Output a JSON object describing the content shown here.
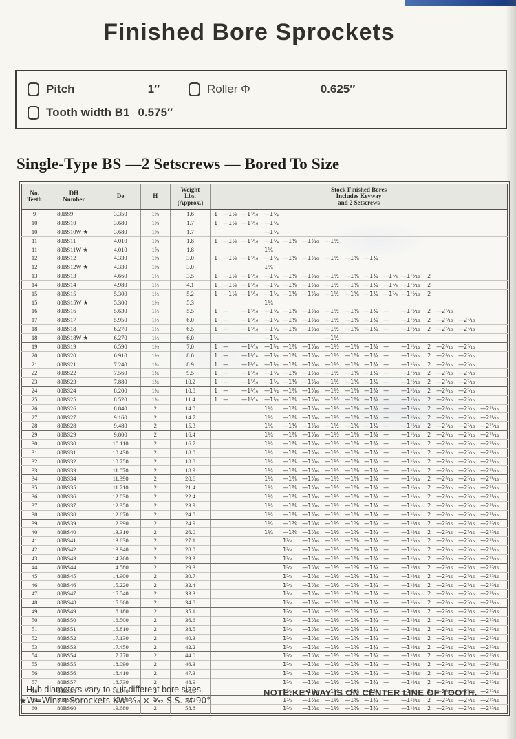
{
  "page": {
    "title": "Finished Bore Sprockets",
    "section_heading": "Single-Type BS —2 Setscrews — Bored To Size",
    "accent_color": "#2a56a4"
  },
  "specs": {
    "pitch_label": "Pitch",
    "pitch_value": "1″",
    "roller_label": "Roller Φ",
    "roller_value": "0.625″",
    "tooth_label": "Tooth width B1",
    "tooth_value": "0.575″"
  },
  "table": {
    "col_teeth": "No.\nTeeth",
    "col_dh": "DH\nNumber",
    "col_de": "De",
    "col_h": "H",
    "col_weight": "Weight\nLbs.\n(Approx.)",
    "col_bores": "Stock Finished Bores\nIncludes Keyway\nand 2 Setscrews",
    "bore_patterns": {
      "A": [
        "1",
        "—1⅛",
        "—1³⁄₁₆",
        "—1¼",
        "",
        "",
        "",
        "",
        "",
        "",
        "",
        "",
        "",
        "",
        ""
      ],
      "A4": [
        "",
        "",
        "",
        "—1¼",
        "",
        "",
        "",
        "",
        "",
        "",
        "",
        "",
        "",
        "",
        ""
      ],
      "B": [
        "1",
        "—1⅛",
        "—1³⁄₁₆",
        "—1¼",
        "—1⅜",
        "—1⁷⁄₁₆",
        "—1½",
        "",
        "",
        "",
        "",
        "",
        "",
        "",
        ""
      ],
      "W4": [
        "",
        "",
        "",
        "1¼",
        "",
        "",
        "",
        "",
        "",
        "",
        "",
        "",
        "",
        "",
        ""
      ],
      "C": [
        "1",
        "—1⅛",
        "—1³⁄₁₆",
        "—1¼",
        "—1⅜",
        "—1⁷⁄₁₆",
        "—1½",
        "—1⅝",
        "—1¾",
        "",
        "",
        "",
        "",
        "",
        ""
      ],
      "D": [
        "1",
        "—1⅛",
        "—1³⁄₁₆",
        "—1¼",
        "—1⅜",
        "—1⁷⁄₁₆",
        "—1½",
        "—1⅝",
        "—1¾",
        "—1⅞",
        "—1¹⁵⁄₁₆",
        "2",
        "",
        "",
        ""
      ],
      "E": [
        "1",
        "—",
        "—1³⁄₁₆",
        "—1¼",
        "—1⅜",
        "—1⁷⁄₁₆",
        "—1½",
        "—1⅝",
        "—1¾",
        "—",
        "—1¹⁵⁄₁₆",
        "2",
        "—2³⁄₁₆",
        "",
        ""
      ],
      "F": [
        "1",
        "—",
        "—1³⁄₁₆",
        "—1¼",
        "—1⅜",
        "—1⁷⁄₁₆",
        "—1½",
        "—1⅝",
        "—1¾",
        "—",
        "—1¹⁵⁄₁₆",
        "2",
        "—2³⁄₁₆",
        "—2⁷⁄₁₆",
        ""
      ],
      "G": [
        "",
        "",
        "",
        "—1¼",
        "",
        "",
        "—1½",
        "",
        "",
        "",
        "",
        "",
        "",
        "",
        ""
      ],
      "H14": [
        "",
        "",
        "",
        "1¼",
        "—1⅜",
        "—1⁷⁄₁₆",
        "—1½",
        "—1⅝",
        "—1¾",
        "—",
        "—1¹⁵⁄₁₆",
        "2",
        "—2³⁄₁₆",
        "—2⁷⁄₁₆",
        "—2¹⁵⁄₁₆"
      ],
      "I38": [
        "",
        "",
        "",
        "",
        "1⅜",
        "—1⁷⁄₁₆",
        "—1½",
        "—1⅝",
        "—1¾",
        "—",
        "—1¹⁵⁄₁₆",
        "2",
        "—2³⁄₁₆",
        "—2⁷⁄₁₆",
        "—2¹⁵⁄₁₆"
      ]
    },
    "rows": [
      {
        "teeth": "9",
        "dh": "80BS9",
        "de": "3.350",
        "h": "1⅝",
        "wt": "1.6",
        "bores": "A"
      },
      {
        "teeth": "10",
        "dh": "80BS10",
        "de": "3.680",
        "h": "1⅝",
        "wt": "1.7",
        "bores": "A"
      },
      {
        "teeth": "10",
        "dh": "80BS10W ★",
        "de": "3.680",
        "h": "1⅝",
        "wt": "1.7",
        "bores": "A4"
      },
      {
        "teeth": "11",
        "dh": "80BS11",
        "de": "4.010",
        "h": "1⅝",
        "wt": "1.8",
        "bores": "B"
      },
      {
        "teeth": "11",
        "dh": "80BS11W ★",
        "de": "4.010",
        "h": "1⅝",
        "wt": "1.8",
        "bores": "W4",
        "g": 1
      },
      {
        "teeth": "12",
        "dh": "80BS12",
        "de": "4.330",
        "h": "1⅝",
        "wt": "3.0",
        "bores": "C"
      },
      {
        "teeth": "12",
        "dh": "80BS12W ★",
        "de": "4.330",
        "h": "1⅝",
        "wt": "3.0",
        "bores": "W4"
      },
      {
        "teeth": "13",
        "dh": "80BS13",
        "de": "4.660",
        "h": "1½",
        "wt": "3.5",
        "bores": "D"
      },
      {
        "teeth": "14",
        "dh": "80BS14",
        "de": "4.980",
        "h": "1½",
        "wt": "4.1",
        "bores": "D"
      },
      {
        "teeth": "15",
        "dh": "80BS15",
        "de": "5.300",
        "h": "1½",
        "wt": "5.2",
        "bores": "D",
        "g": 1
      },
      {
        "teeth": "15",
        "dh": "80BS15W ★",
        "de": "5.300",
        "h": "1½",
        "wt": "5.3",
        "bores": "W4"
      },
      {
        "teeth": "16",
        "dh": "80BS16",
        "de": "5.630",
        "h": "1½",
        "wt": "5.5",
        "bores": "E"
      },
      {
        "teeth": "17",
        "dh": "80BS17",
        "de": "5.950",
        "h": "1½",
        "wt": "6.0",
        "bores": "F"
      },
      {
        "teeth": "18",
        "dh": "80BS18",
        "de": "6.270",
        "h": "1½",
        "wt": "6.5",
        "bores": "F"
      },
      {
        "teeth": "18",
        "dh": "80BS18W ★",
        "de": "6.270",
        "h": "1½",
        "wt": "6.0",
        "bores": "G",
        "g": 1
      },
      {
        "teeth": "19",
        "dh": "80BS19",
        "de": "6.590",
        "h": "1½",
        "wt": "7.0",
        "bores": "F"
      },
      {
        "teeth": "20",
        "dh": "80BS20",
        "de": "6.910",
        "h": "1½",
        "wt": "8.0",
        "bores": "F"
      },
      {
        "teeth": "21",
        "dh": "80BS21",
        "de": "7.240",
        "h": "1¾",
        "wt": "8.9",
        "bores": "F"
      },
      {
        "teeth": "22",
        "dh": "80BS22",
        "de": "7.560",
        "h": "1¾",
        "wt": "9.5",
        "bores": "F"
      },
      {
        "teeth": "23",
        "dh": "80BS23",
        "de": "7.880",
        "h": "1¾",
        "wt": "10.2",
        "bores": "F",
        "g": 1
      },
      {
        "teeth": "24",
        "dh": "80BS24",
        "de": "8.200",
        "h": "1¾",
        "wt": "10.8",
        "bores": "F"
      },
      {
        "teeth": "25",
        "dh": "80BS25",
        "de": "8.520",
        "h": "1¾",
        "wt": "11.4",
        "bores": "F"
      },
      {
        "teeth": "26",
        "dh": "80BS26",
        "de": "8.840",
        "h": "2",
        "wt": "14.0",
        "bores": "H14"
      },
      {
        "teeth": "27",
        "dh": "80BS27",
        "de": "9.160",
        "h": "2",
        "wt": "14.7",
        "bores": "H14"
      },
      {
        "teeth": "28",
        "dh": "80BS28",
        "de": "9.480",
        "h": "2",
        "wt": "15.3",
        "bores": "H14",
        "g": 1
      },
      {
        "teeth": "29",
        "dh": "80BS29",
        "de": "9.800",
        "h": "2",
        "wt": "16.4",
        "bores": "H14"
      },
      {
        "teeth": "30",
        "dh": "80BS30",
        "de": "10.110",
        "h": "2",
        "wt": "16.7",
        "bores": "H14"
      },
      {
        "teeth": "31",
        "dh": "80BS31",
        "de": "10.430",
        "h": "2",
        "wt": "18.0",
        "bores": "H14"
      },
      {
        "teeth": "32",
        "dh": "80BS32",
        "de": "10.750",
        "h": "2",
        "wt": "18.8",
        "bores": "H14"
      },
      {
        "teeth": "33",
        "dh": "80BS33",
        "de": "11.070",
        "h": "2",
        "wt": "18.9",
        "bores": "H14",
        "g": 1
      },
      {
        "teeth": "34",
        "dh": "80BS34",
        "de": "11.390",
        "h": "2",
        "wt": "20.6",
        "bores": "H14"
      },
      {
        "teeth": "35",
        "dh": "80BS35",
        "de": "11.710",
        "h": "2",
        "wt": "21.4",
        "bores": "H14"
      },
      {
        "teeth": "36",
        "dh": "80BS36",
        "de": "12.030",
        "h": "2",
        "wt": "22.4",
        "bores": "H14"
      },
      {
        "teeth": "37",
        "dh": "80BS37",
        "de": "12.350",
        "h": "2",
        "wt": "23.9",
        "bores": "H14"
      },
      {
        "teeth": "38",
        "dh": "80BS38",
        "de": "12.670",
        "h": "2",
        "wt": "24.0",
        "bores": "H14",
        "g": 1
      },
      {
        "teeth": "39",
        "dh": "80BS39",
        "de": "12.990",
        "h": "2",
        "wt": "24.9",
        "bores": "H14"
      },
      {
        "teeth": "40",
        "dh": "80BS40",
        "de": "13.310",
        "h": "2",
        "wt": "26.0",
        "bores": "H14"
      },
      {
        "teeth": "41",
        "dh": "80BS41",
        "de": "13.630",
        "h": "2",
        "wt": "27.1",
        "bores": "I38"
      },
      {
        "teeth": "42",
        "dh": "80BS42",
        "de": "13.940",
        "h": "2",
        "wt": "28.0",
        "bores": "I38"
      },
      {
        "teeth": "43",
        "dh": "80BS43",
        "de": "14.260",
        "h": "2",
        "wt": "29.3",
        "bores": "I38",
        "g": 1
      },
      {
        "teeth": "44",
        "dh": "80BS44",
        "de": "14.580",
        "h": "2",
        "wt": "29.3",
        "bores": "I38"
      },
      {
        "teeth": "45",
        "dh": "80BS45",
        "de": "14.900",
        "h": "2",
        "wt": "30.7",
        "bores": "I38"
      },
      {
        "teeth": "46",
        "dh": "80BS46",
        "de": "15.220",
        "h": "2",
        "wt": "32.4",
        "bores": "I38"
      },
      {
        "teeth": "47",
        "dh": "80BS47",
        "de": "15.540",
        "h": "2",
        "wt": "33.3",
        "bores": "I38"
      },
      {
        "teeth": "48",
        "dh": "80BS48",
        "de": "15.860",
        "h": "2",
        "wt": "34.8",
        "bores": "I38",
        "g": 1
      },
      {
        "teeth": "49",
        "dh": "80BS49",
        "de": "16.180",
        "h": "2",
        "wt": "35.1",
        "bores": "I38"
      },
      {
        "teeth": "50",
        "dh": "80BS50",
        "de": "16.500",
        "h": "2",
        "wt": "36.6",
        "bores": "I38"
      },
      {
        "teeth": "51",
        "dh": "80BS51",
        "de": "16.810",
        "h": "2",
        "wt": "38.5",
        "bores": "I38"
      },
      {
        "teeth": "52",
        "dh": "80BS52",
        "de": "17.130",
        "h": "2",
        "wt": "40.3",
        "bores": "I38"
      },
      {
        "teeth": "53",
        "dh": "80BS53",
        "de": "17.450",
        "h": "2",
        "wt": "42.2",
        "bores": "I38",
        "g": 1
      },
      {
        "teeth": "54",
        "dh": "80BS54",
        "de": "17.770",
        "h": "2",
        "wt": "44.0",
        "bores": "I38"
      },
      {
        "teeth": "55",
        "dh": "80BS55",
        "de": "18.090",
        "h": "2",
        "wt": "46.3",
        "bores": "I38"
      },
      {
        "teeth": "56",
        "dh": "80BS56",
        "de": "18.410",
        "h": "2",
        "wt": "47.3",
        "bores": "I38"
      },
      {
        "teeth": "57",
        "dh": "80BS57",
        "de": "18.730",
        "h": "2",
        "wt": "48.9",
        "bores": "I38"
      },
      {
        "teeth": "58",
        "dh": "80BS58",
        "de": "19.040",
        "h": "2",
        "wt": "50.6",
        "bores": "I38",
        "g": 1
      },
      {
        "teeth": "59",
        "dh": "80BS59",
        "de": "19.360",
        "h": "2",
        "wt": "52.2",
        "bores": "I38"
      },
      {
        "teeth": "60",
        "dh": "80BS60",
        "de": "19.680",
        "h": "2",
        "wt": "58.8",
        "bores": "I38"
      }
    ]
  },
  "notes": {
    "hub": "Hub diameters vary to suit different bore sizes.",
    "winch": "★W=Winch Sprockets-KW ⁹⁄₁₆ × ⁵⁄₃₂-S.S. at 90°",
    "keyway": "NOTE:KEYWAY IS ON CENTER LINE OF TOOTH."
  }
}
